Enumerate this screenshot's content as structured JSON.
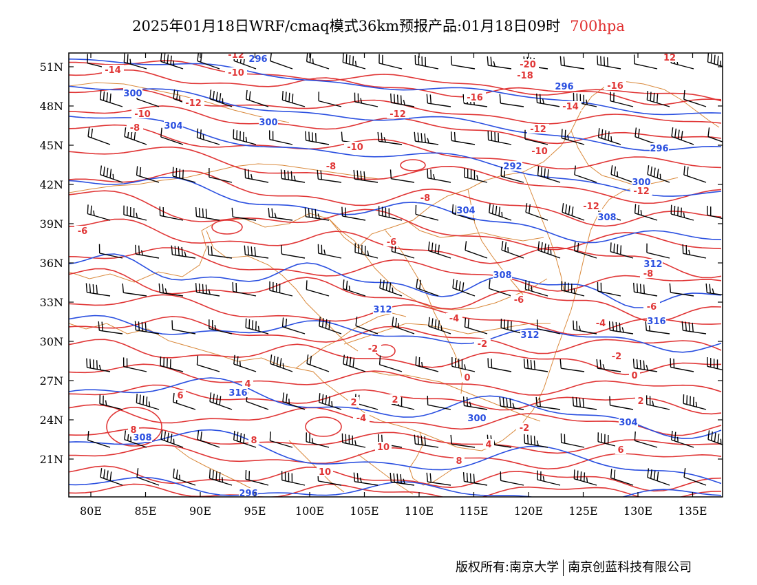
{
  "title": {
    "main": "2025年01月18日WRF/cmaq模式36km预报产品:01月18日09时",
    "level": "700hpa"
  },
  "colors": {
    "height": "#2a4fe0",
    "temperature": "#e03535",
    "boundary": "#d9883a",
    "wind": "#000000"
  },
  "lat_labels": [
    "51N",
    "48N",
    "45N",
    "42N",
    "39N",
    "36N",
    "33N",
    "30N",
    "27N",
    "24N",
    "21N"
  ],
  "lon_labels": [
    "80E",
    "85E",
    "90E",
    "95E",
    "100E",
    "105E",
    "110E",
    "115E",
    "120E",
    "125E",
    "130E",
    "135E"
  ],
  "height_labels": [
    "296",
    "300",
    "304",
    "300",
    "296",
    "292",
    "296",
    "300",
    "304",
    "308",
    "308",
    "312",
    "312",
    "312",
    "316",
    "316",
    "300",
    "304",
    "308",
    "296"
  ],
  "temp_labels": [
    "-12",
    "-14",
    "-10",
    "-12",
    "-10",
    "-8",
    "-12",
    "-10",
    "-8",
    "-8",
    "-6",
    "-6",
    "-6",
    "-4",
    "-4",
    "-2",
    "-2",
    "-2",
    "0",
    "2",
    "2",
    "4",
    "6",
    "8",
    "8",
    "10",
    "10",
    "12",
    "-20",
    "-18",
    "-16",
    "-16",
    "-14",
    "-12",
    "-12",
    "-12",
    "-10",
    "-8",
    "-6",
    "-4",
    "-2",
    "0",
    "2",
    "4",
    "6",
    "8"
  ],
  "copyright": {
    "left": "版权所有:南京大学",
    "right": "南京创蓝科技有限公司"
  }
}
